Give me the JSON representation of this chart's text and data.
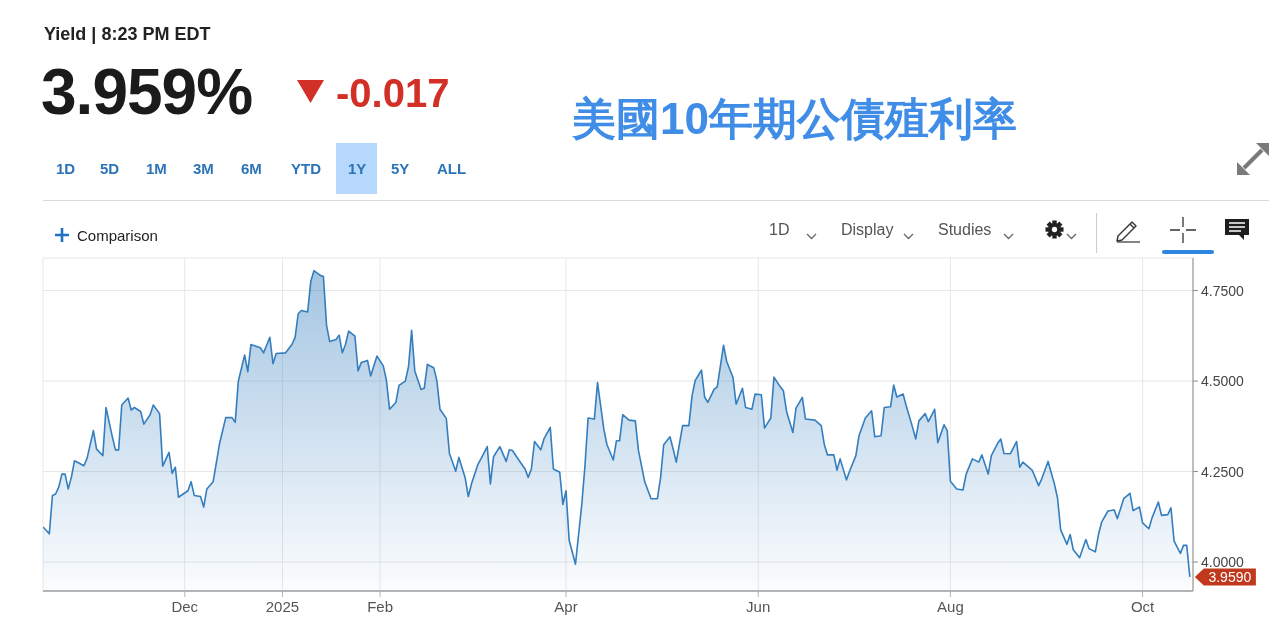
{
  "chart_data": {
    "type": "area",
    "title": "美國10年期公債殖利率",
    "subtitle": "Yield | 8:23 PM EDT",
    "x": [
      "2024-10-17",
      "2024-10-19",
      "2024-10-20",
      "2024-10-21",
      "2024-10-22",
      "2024-10-23",
      "2024-10-24",
      "2024-10-25",
      "2024-10-26",
      "2024-10-27",
      "2024-10-30",
      "2024-10-31",
      "2024-11-02",
      "2024-11-03",
      "2024-11-05",
      "2024-11-06",
      "2024-11-08",
      "2024-11-09",
      "2024-11-10",
      "2024-11-11",
      "2024-11-13",
      "2024-11-14",
      "2024-11-15",
      "2024-11-17",
      "2024-11-18",
      "2024-11-20",
      "2024-11-21",
      "2024-11-23",
      "2024-11-24",
      "2024-11-26",
      "2024-11-27",
      "2024-11-28",
      "2024-11-29",
      "2024-12-02",
      "2024-12-03",
      "2024-12-04",
      "2024-12-06",
      "2024-12-07",
      "2024-12-08",
      "2024-12-10",
      "2024-12-11",
      "2024-12-12",
      "2024-12-14",
      "2024-12-16",
      "2024-12-17",
      "2024-12-18",
      "2024-12-20",
      "2024-12-21",
      "2024-12-22",
      "2024-12-25",
      "2024-12-26",
      "2024-12-28",
      "2024-12-29",
      "2024-12-30",
      "2025-01-02",
      "2025-01-04",
      "2025-01-05",
      "2025-01-06",
      "2025-01-07",
      "2025-01-09",
      "2025-01-10",
      "2025-01-11",
      "2025-01-13",
      "2025-01-14",
      "2025-01-15",
      "2025-01-16",
      "2025-01-18",
      "2025-01-19",
      "2025-01-20",
      "2025-01-21",
      "2025-01-22",
      "2025-01-24",
      "2025-01-25",
      "2025-01-26",
      "2025-01-28",
      "2025-01-29",
      "2025-01-31",
      "2025-02-02",
      "2025-02-03",
      "2025-02-04",
      "2025-02-06",
      "2025-02-07",
      "2025-02-09",
      "2025-02-10",
      "2025-02-11",
      "2025-02-12",
      "2025-02-14",
      "2025-02-15",
      "2025-02-16",
      "2025-02-18",
      "2025-02-19",
      "2025-02-20",
      "2025-02-22",
      "2025-02-23",
      "2025-02-25",
      "2025-02-26",
      "2025-02-28",
      "2025-03-01",
      "2025-03-02",
      "2025-03-04",
      "2025-03-05",
      "2025-03-07",
      "2025-03-08",
      "2025-03-09",
      "2025-03-11",
      "2025-03-13",
      "2025-03-14",
      "2025-03-15",
      "2025-03-17",
      "2025-03-19",
      "2025-03-20",
      "2025-03-21",
      "2025-03-22",
      "2025-03-24",
      "2025-03-25",
      "2025-03-27",
      "2025-03-28",
      "2025-03-30",
      "2025-03-31",
      "2025-04-01",
      "2025-04-02",
      "2025-04-04",
      "2025-04-06",
      "2025-04-07",
      "2025-04-08",
      "2025-04-10",
      "2025-04-11",
      "2025-04-13",
      "2025-04-14",
      "2025-04-16",
      "2025-04-17",
      "2025-04-18",
      "2025-04-19",
      "2025-04-21",
      "2025-04-23",
      "2025-04-24",
      "2025-04-26",
      "2025-04-28",
      "2025-04-30",
      "2025-05-01",
      "2025-05-02",
      "2025-05-04",
      "2025-05-05",
      "2025-05-06",
      "2025-05-08",
      "2025-05-10",
      "2025-05-11",
      "2025-05-12",
      "2025-05-14",
      "2025-05-15",
      "2025-05-16",
      "2025-05-18",
      "2025-05-19",
      "2025-05-21",
      "2025-05-22",
      "2025-05-24",
      "2025-05-25",
      "2025-05-27",
      "2025-05-28",
      "2025-05-30",
      "2025-05-31",
      "2025-06-02",
      "2025-06-03",
      "2025-06-05",
      "2025-06-06",
      "2025-06-08",
      "2025-06-09",
      "2025-06-10",
      "2025-06-12",
      "2025-06-13",
      "2025-06-15",
      "2025-06-16",
      "2025-06-19",
      "2025-06-21",
      "2025-06-22",
      "2025-06-23",
      "2025-06-25",
      "2025-06-26",
      "2025-06-27",
      "2025-06-29",
      "2025-06-30",
      "2025-07-02",
      "2025-07-03",
      "2025-07-05",
      "2025-07-07",
      "2025-07-08",
      "2025-07-10",
      "2025-07-11",
      "2025-07-13",
      "2025-07-14",
      "2025-07-15",
      "2025-07-17",
      "2025-07-18",
      "2025-07-20",
      "2025-07-21",
      "2025-07-22",
      "2025-07-24",
      "2025-07-25",
      "2025-07-27",
      "2025-07-28",
      "2025-07-30",
      "2025-07-31",
      "2025-08-01",
      "2025-08-03",
      "2025-08-05",
      "2025-08-06",
      "2025-08-08",
      "2025-08-10",
      "2025-08-11",
      "2025-08-13",
      "2025-08-14",
      "2025-08-16",
      "2025-08-17",
      "2025-08-18",
      "2025-08-20",
      "2025-08-22",
      "2025-08-23",
      "2025-08-24",
      "2025-08-27",
      "2025-08-29",
      "2025-08-30",
      "2025-09-01",
      "2025-09-03",
      "2025-09-04",
      "2025-09-05",
      "2025-09-07",
      "2025-09-08",
      "2025-09-09",
      "2025-09-11",
      "2025-09-13",
      "2025-09-14",
      "2025-09-16",
      "2025-09-17",
      "2025-09-18",
      "2025-09-20",
      "2025-09-22",
      "2025-09-23",
      "2025-09-24",
      "2025-09-25",
      "2025-09-27",
      "2025-09-28",
      "2025-09-30",
      "2025-10-01",
      "2025-10-03",
      "2025-10-04",
      "2025-10-06",
      "2025-10-07",
      "2025-10-09",
      "2025-10-10",
      "2025-10-11",
      "2025-10-13",
      "2025-10-14",
      "2025-10-15",
      "2025-10-16"
    ],
    "values": [
      4.097,
      4.078,
      4.184,
      4.188,
      4.207,
      4.243,
      4.243,
      4.202,
      4.234,
      4.28,
      4.266,
      4.287,
      4.363,
      4.312,
      4.294,
      4.427,
      4.346,
      4.31,
      4.31,
      4.434,
      4.453,
      4.42,
      4.427,
      4.416,
      4.381,
      4.407,
      4.434,
      4.41,
      4.265,
      4.303,
      4.245,
      4.262,
      4.179,
      4.197,
      4.222,
      4.184,
      4.181,
      4.152,
      4.202,
      4.222,
      4.273,
      4.326,
      4.399,
      4.399,
      4.386,
      4.5,
      4.572,
      4.526,
      4.601,
      4.592,
      4.578,
      4.621,
      4.548,
      4.576,
      4.578,
      4.601,
      4.62,
      4.686,
      4.695,
      4.691,
      4.776,
      4.805,
      4.792,
      4.789,
      4.654,
      4.609,
      4.615,
      4.627,
      4.578,
      4.601,
      4.638,
      4.624,
      4.528,
      4.551,
      4.557,
      4.514,
      4.569,
      4.542,
      4.502,
      4.422,
      4.441,
      4.488,
      4.5,
      4.539,
      4.64,
      4.528,
      4.477,
      4.48,
      4.546,
      4.537,
      4.502,
      4.422,
      4.397,
      4.3,
      4.251,
      4.289,
      4.232,
      4.181,
      4.216,
      4.269,
      4.285,
      4.319,
      4.216,
      4.291,
      4.319,
      4.278,
      4.31,
      4.308,
      4.282,
      4.257,
      4.234,
      4.257,
      4.333,
      4.31,
      4.34,
      4.372,
      4.257,
      4.248,
      4.159,
      4.197,
      4.06,
      3.994,
      4.159,
      4.264,
      4.398,
      4.395,
      4.496,
      4.367,
      4.324,
      4.282,
      4.335,
      4.335,
      4.407,
      4.392,
      4.39,
      4.308,
      4.221,
      4.175,
      4.175,
      4.232,
      4.324,
      4.346,
      4.312,
      4.276,
      4.377,
      4.377,
      4.459,
      4.502,
      4.53,
      4.456,
      4.441,
      4.477,
      4.484,
      4.599,
      4.554,
      4.51,
      4.436,
      4.48,
      4.427,
      4.422,
      4.464,
      4.462,
      4.37,
      4.398,
      4.511,
      4.484,
      4.473,
      4.416,
      4.358,
      4.425,
      4.455,
      4.395,
      4.392,
      4.377,
      4.324,
      4.296,
      4.296,
      4.254,
      4.285,
      4.227,
      4.251,
      4.294,
      4.349,
      4.398,
      4.418,
      4.346,
      4.349,
      4.427,
      4.429,
      4.489,
      4.456,
      4.464,
      4.431,
      4.372,
      4.34,
      4.39,
      4.41,
      4.388,
      4.422,
      4.33,
      4.379,
      4.363,
      4.223,
      4.202,
      4.199,
      4.243,
      4.285,
      4.276,
      4.296,
      4.243,
      4.294,
      4.328,
      4.34,
      4.3,
      4.299,
      4.333,
      4.262,
      4.276,
      4.253,
      4.211,
      4.23,
      4.278,
      4.216,
      4.177,
      4.089,
      4.049,
      4.076,
      4.034,
      4.012,
      4.062,
      4.037,
      4.028,
      4.076,
      4.11,
      4.141,
      4.144,
      4.12,
      4.147,
      4.175,
      4.19,
      4.142,
      4.152,
      4.108,
      4.092,
      4.122,
      4.166,
      4.129,
      4.131,
      4.15,
      4.058,
      4.024,
      4.046,
      4.046,
      3.959
    ],
    "color": "#347ebe",
    "xlim": [
      "2024-10-17",
      "2025-10-17"
    ],
    "xticks": [
      {
        "value": "2024-12-01",
        "label": "Dec"
      },
      {
        "value": "2025-01-01",
        "label": "2025"
      },
      {
        "value": "2025-02-01",
        "label": "Feb"
      },
      {
        "value": "2025-04-01",
        "label": "Apr"
      },
      {
        "value": "2025-06-01",
        "label": "Jun"
      },
      {
        "value": "2025-08-01",
        "label": "Aug"
      },
      {
        "value": "2025-10-01",
        "label": "Oct"
      }
    ],
    "ylim": [
      3.92,
      4.84
    ],
    "yticks": [
      {
        "value": 4,
        "label": "4.0000"
      },
      {
        "value": 4.25,
        "label": "4.2500"
      },
      {
        "value": 4.5,
        "label": "4.5000"
      },
      {
        "value": 4.75,
        "label": "4.7500"
      }
    ],
    "grid": true,
    "annotations": [
      "3.959%",
      "-0.017",
      "1D",
      "5D",
      "1M",
      "3M",
      "6M",
      "YTD",
      "1Y",
      "5Y",
      "ALL",
      "Comparison",
      "1D",
      "Display",
      "Studies",
      {
        "text": "3.9590",
        "x": "2025-10-16",
        "y": 3.959
      }
    ]
  }
}
